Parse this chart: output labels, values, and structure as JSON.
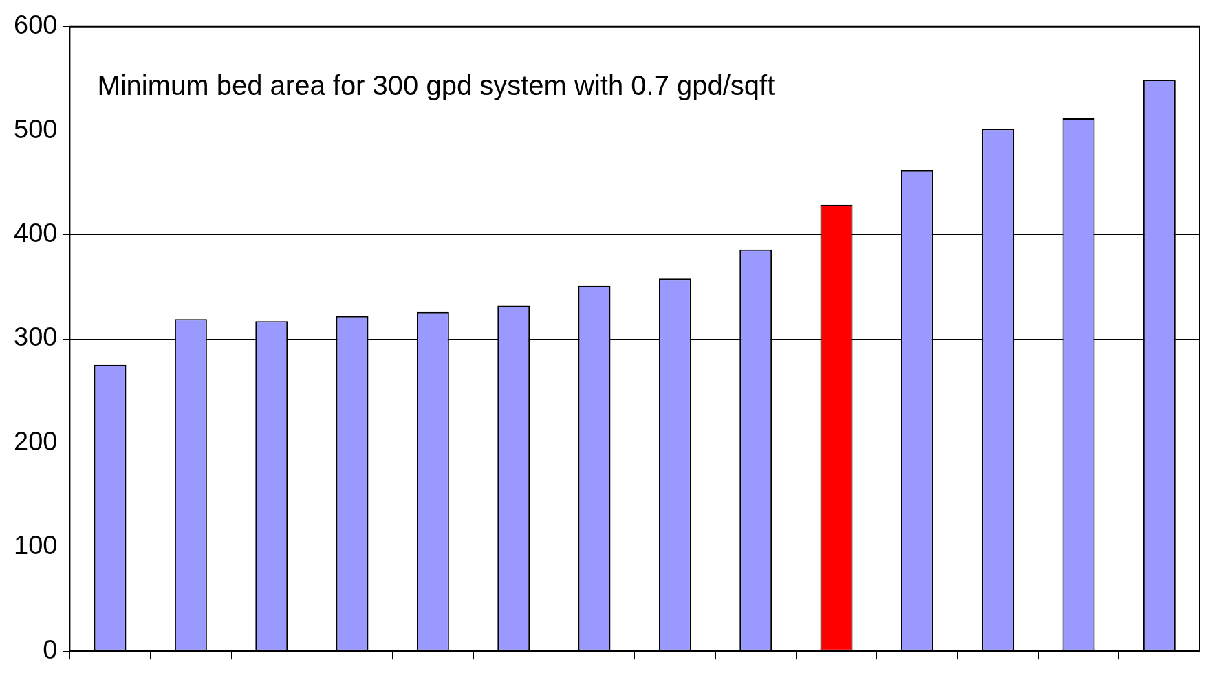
{
  "chart_data": {
    "type": "bar",
    "title": "Minimum bed area for 300 gpd system with 0.7 gpd/sqft",
    "categories": [
      null,
      null,
      null,
      null,
      null,
      null,
      null,
      null,
      null,
      null,
      null,
      null,
      null,
      null
    ],
    "values": [
      275,
      319,
      317,
      322,
      326,
      332,
      351,
      358,
      386,
      429,
      462,
      502,
      512,
      549
    ],
    "colors": [
      "#9999ff",
      "#9999ff",
      "#9999ff",
      "#9999ff",
      "#9999ff",
      "#9999ff",
      "#9999ff",
      "#9999ff",
      "#9999ff",
      "#ff0000",
      "#9999ff",
      "#9999ff",
      "#9999ff",
      "#9999ff"
    ],
    "ylim": [
      0,
      600
    ],
    "yticks": [
      0,
      100,
      200,
      300,
      400,
      500,
      600
    ],
    "grid": "y",
    "tick_labels": "y",
    "legend": false
  }
}
